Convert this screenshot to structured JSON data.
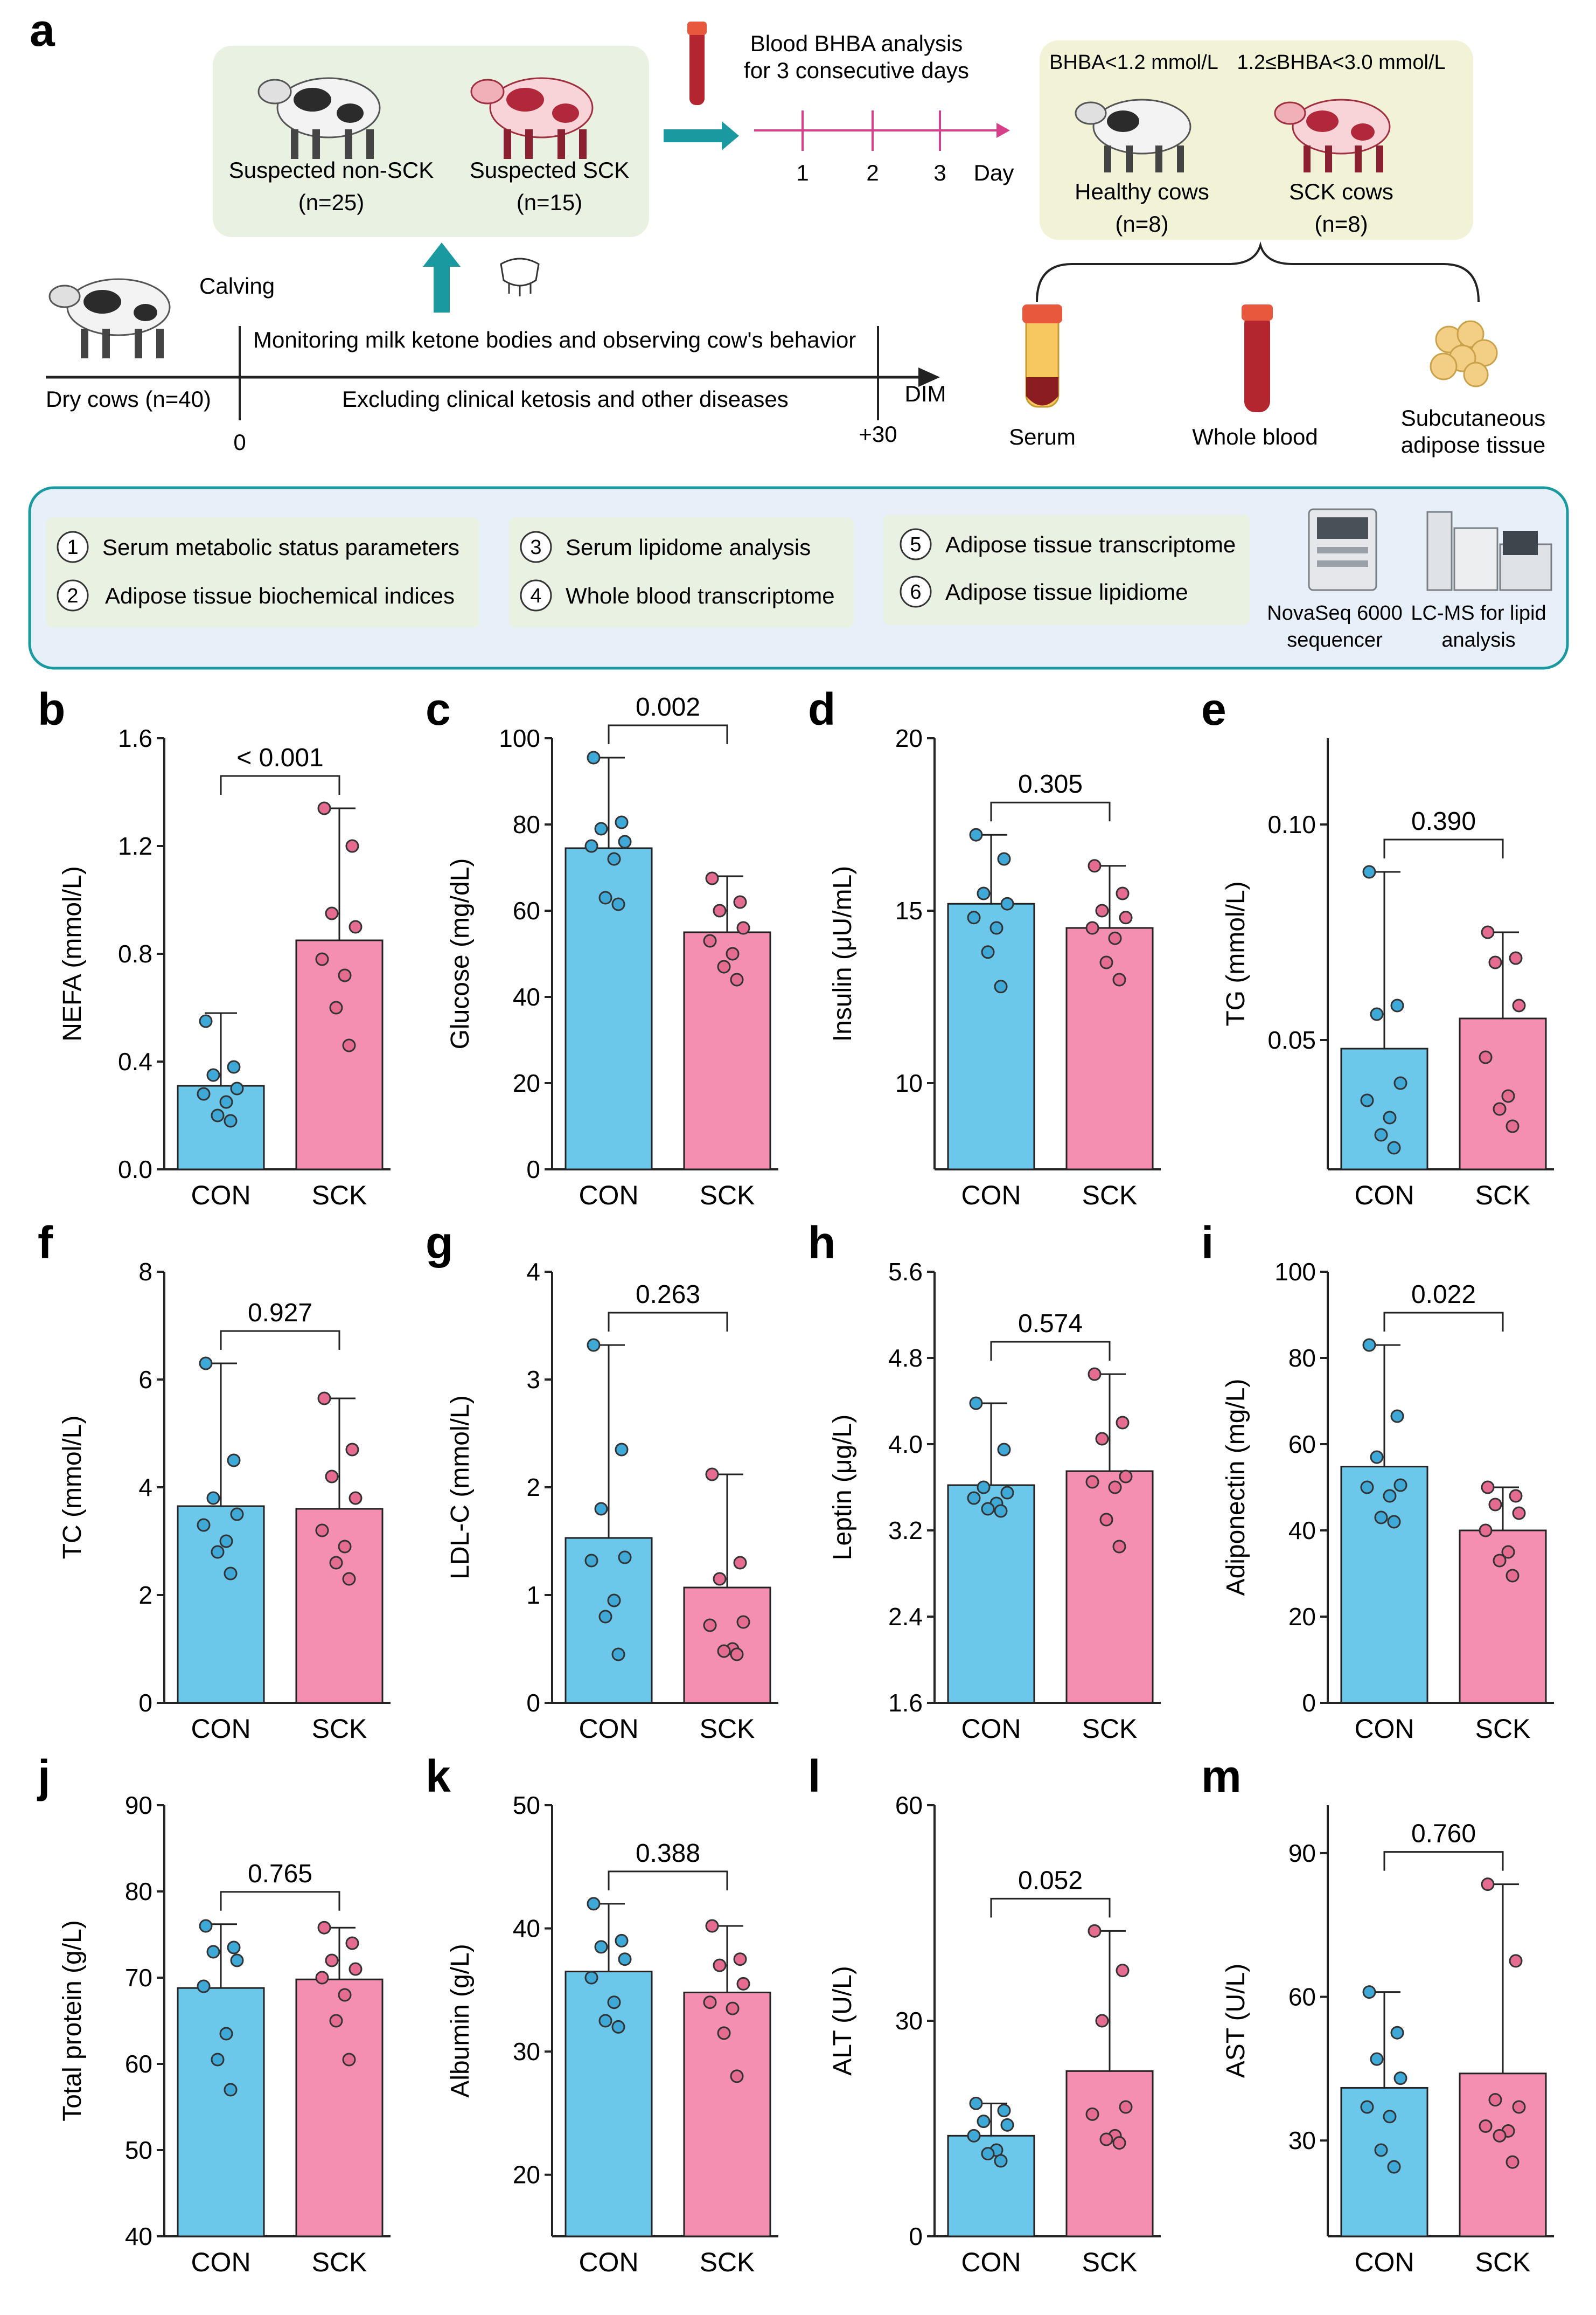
{
  "panel_a": {
    "letter": "a",
    "suspected_non_sck": {
      "label": "Suspected non-SCK",
      "n": "(n=25)"
    },
    "suspected_sck": {
      "label": "Suspected SCK",
      "n": "(n=15)"
    },
    "blood_bhba": {
      "line1": "Blood BHBA analysis",
      "line2": "for 3 consecutive days"
    },
    "days": [
      "1",
      "2",
      "3"
    ],
    "day_label": "Day",
    "healthy": {
      "criterion": "BHBA<1.2 mmol/L",
      "label": "Healthy cows",
      "n": "(n=8)"
    },
    "sck": {
      "criterion": "1.2≤BHBA<3.0 mmol/L",
      "label": "SCK cows",
      "n": "(n=8)"
    },
    "calving": "Calving",
    "monitoring": "Monitoring milk ketone bodies and observing cow's behavior",
    "excluding": "Excluding clinical ketosis and other diseases",
    "dry_cows": "Dry cows (n=40)",
    "timeline_zero": "0",
    "timeline_end": "+30",
    "dim": "DIM",
    "samples": {
      "serum": "Serum",
      "blood": "Whole blood",
      "adipose1": "Subcutaneous",
      "adipose2": "adipose tissue"
    },
    "analyses": [
      {
        "num": "1",
        "text": "Serum metabolic status parameters"
      },
      {
        "num": "2",
        "text": "Adipose tissue biochemical indices"
      },
      {
        "num": "3",
        "text": "Serum lipidome analysis"
      },
      {
        "num": "4",
        "text": "Whole blood transcriptome"
      },
      {
        "num": "5",
        "text": "Adipose tissue transcriptome"
      },
      {
        "num": "6",
        "text": "Adipose tissue lipidiome"
      }
    ],
    "instrument1": {
      "line1": "NovaSeq 6000",
      "line2": "sequencer"
    },
    "instrument2": {
      "line1": "LC-MS for lipid",
      "line2": "analysis"
    }
  },
  "colors": {
    "con": "#6cc8ea",
    "sck": "#f48fb1",
    "con_dot": "#3ea9d6",
    "sck_dot": "#e56b91",
    "panel_green": "#e9f1e2",
    "panel_yellow": "#f1f2d6",
    "panel_blue": "#e7f0f9",
    "teal": "#1a9aa0",
    "magenta": "#d6408a"
  },
  "chart_data": [
    {
      "letter": "b",
      "type": "bar",
      "categories": [
        "CON",
        "SCK"
      ],
      "ylabel": "NEFA (mmol/L)",
      "ylim": [
        0,
        1.6
      ],
      "yticks": [
        "0.0",
        "0.4",
        "0.8",
        "1.2",
        "1.6"
      ],
      "means": [
        0.31,
        0.85
      ],
      "sd_top": [
        0.58,
        1.34
      ],
      "pvalue": "< 0.001",
      "points": [
        [
          0.55,
          0.38,
          0.35,
          0.3,
          0.28,
          0.25,
          0.2,
          0.18
        ],
        [
          1.34,
          1.2,
          0.95,
          0.9,
          0.78,
          0.72,
          0.6,
          0.46
        ]
      ]
    },
    {
      "letter": "c",
      "type": "bar",
      "categories": [
        "CON",
        "SCK"
      ],
      "ylabel": "Glucose (mg/dL)",
      "ylim": [
        0,
        100
      ],
      "yticks": [
        "0",
        "20",
        "40",
        "60",
        "80",
        "100"
      ],
      "means": [
        74.5,
        55
      ],
      "sd_top": [
        95.5,
        68
      ],
      "pvalue": "0.002",
      "points": [
        [
          95.5,
          80.5,
          79,
          76,
          75,
          72,
          63,
          61.5
        ],
        [
          67.5,
          62,
          60,
          56,
          53,
          50,
          47,
          44
        ]
      ]
    },
    {
      "letter": "d",
      "type": "bar",
      "categories": [
        "CON",
        "SCK"
      ],
      "ylabel": "Insulin (μU/mL)",
      "ylim": [
        7.5,
        20
      ],
      "yticks": [
        "10",
        "15",
        "20"
      ],
      "means": [
        15.2,
        14.5
      ],
      "sd_top": [
        17.2,
        16.3
      ],
      "pvalue": "0.305",
      "points": [
        [
          17.2,
          16.5,
          15.5,
          15.2,
          14.8,
          14.5,
          13.8,
          12.8
        ],
        [
          16.3,
          15.5,
          15.0,
          14.8,
          14.5,
          14.2,
          13.5,
          13.0
        ]
      ]
    },
    {
      "letter": "e",
      "type": "bar",
      "categories": [
        "CON",
        "SCK"
      ],
      "ylabel": "TG (mmol/L)",
      "ylim": [
        0.02,
        0.12
      ],
      "yticks": [
        "0.05",
        "0.10"
      ],
      "means": [
        0.048,
        0.055
      ],
      "sd_top": [
        0.089,
        0.075
      ],
      "pvalue": "0.390",
      "points": [
        [
          0.089,
          0.058,
          0.056,
          0.04,
          0.036,
          0.032,
          0.028,
          0.025
        ],
        [
          0.075,
          0.069,
          0.068,
          0.058,
          0.046,
          0.037,
          0.034,
          0.03
        ]
      ]
    },
    {
      "letter": "f",
      "type": "bar",
      "categories": [
        "CON",
        "SCK"
      ],
      "ylabel": "TC (mmol/L)",
      "ylim": [
        0,
        8
      ],
      "yticks": [
        "0",
        "2",
        "4",
        "6",
        "8"
      ],
      "means": [
        3.65,
        3.6
      ],
      "sd_top": [
        6.3,
        5.65
      ],
      "pvalue": "0.927",
      "points": [
        [
          6.3,
          4.5,
          3.8,
          3.5,
          3.3,
          3.0,
          2.8,
          2.4
        ],
        [
          5.65,
          4.7,
          4.2,
          3.8,
          3.2,
          2.9,
          2.6,
          2.3
        ]
      ]
    },
    {
      "letter": "g",
      "type": "bar",
      "categories": [
        "CON",
        "SCK"
      ],
      "ylabel": "LDL-C (mmol/L)",
      "ylim": [
        0,
        4
      ],
      "yticks": [
        "0",
        "1",
        "2",
        "3",
        "4"
      ],
      "means": [
        1.53,
        1.07
      ],
      "sd_top": [
        3.32,
        2.12
      ],
      "pvalue": "0.263",
      "points": [
        [
          3.32,
          2.35,
          1.8,
          1.35,
          1.32,
          0.95,
          0.8,
          0.45
        ],
        [
          2.12,
          1.3,
          1.15,
          0.75,
          0.72,
          0.5,
          0.48,
          0.45
        ]
      ]
    },
    {
      "letter": "h",
      "type": "bar",
      "categories": [
        "CON",
        "SCK"
      ],
      "ylabel": "Leptin (μg/L)",
      "ylim": [
        1.6,
        5.6
      ],
      "yticks": [
        "1.6",
        "2.4",
        "3.2",
        "4.0",
        "4.8",
        "5.6"
      ],
      "means": [
        3.62,
        3.75
      ],
      "sd_top": [
        4.38,
        4.65
      ],
      "pvalue": "0.574",
      "points": [
        [
          4.38,
          3.95,
          3.6,
          3.55,
          3.5,
          3.45,
          3.4,
          3.38
        ],
        [
          4.65,
          4.2,
          4.05,
          3.7,
          3.65,
          3.6,
          3.3,
          3.05
        ]
      ]
    },
    {
      "letter": "i",
      "type": "bar",
      "categories": [
        "CON",
        "SCK"
      ],
      "ylabel": "Adiponectin (mg/L)",
      "ylim": [
        0,
        100
      ],
      "yticks": [
        "0",
        "20",
        "40",
        "60",
        "80",
        "100"
      ],
      "means": [
        54.8,
        40
      ],
      "sd_top": [
        83,
        50
      ],
      "pvalue": "0.022",
      "points": [
        [
          83,
          66.5,
          57,
          50.5,
          50,
          48,
          43,
          42
        ],
        [
          50,
          48,
          46,
          44,
          40,
          35,
          33,
          29.5
        ]
      ]
    },
    {
      "letter": "j",
      "type": "bar",
      "categories": [
        "CON",
        "SCK"
      ],
      "ylabel": "Total protein (g/L)",
      "ylim": [
        40,
        90
      ],
      "yticks": [
        "40",
        "50",
        "60",
        "70",
        "80",
        "90"
      ],
      "means": [
        68.8,
        69.8
      ],
      "sd_top": [
        76.2,
        75.8
      ],
      "pvalue": "0.765",
      "points": [
        [
          76,
          73.5,
          73,
          72,
          69,
          63.5,
          60.5,
          57
        ],
        [
          75.8,
          74,
          72,
          71,
          70,
          68,
          65,
          60.5
        ]
      ]
    },
    {
      "letter": "k",
      "type": "bar",
      "categories": [
        "CON",
        "SCK"
      ],
      "ylabel": "Albumin (g/L)",
      "ylim": [
        15,
        50
      ],
      "yticks": [
        "20",
        "30",
        "40",
        "50"
      ],
      "means": [
        36.5,
        34.8
      ],
      "sd_top": [
        42,
        40.2
      ],
      "pvalue": "0.388",
      "points": [
        [
          42,
          39,
          38.5,
          37.5,
          36,
          34,
          32.5,
          32
        ],
        [
          40.2,
          37.5,
          37,
          35.5,
          34,
          33.5,
          31.5,
          28
        ]
      ]
    },
    {
      "letter": "l",
      "type": "bar",
      "categories": [
        "CON",
        "SCK"
      ],
      "ylabel": "ALT (U/L)",
      "ylim": [
        0,
        60
      ],
      "yticks": [
        "0",
        "30",
        "60"
      ],
      "means": [
        14,
        23
      ],
      "sd_top": [
        18.5,
        42.5
      ],
      "pvalue": "0.052",
      "points": [
        [
          18.5,
          17.5,
          16,
          15.5,
          14,
          12,
          11.5,
          10.5
        ],
        [
          42.5,
          37,
          30,
          18,
          17,
          14,
          13.5,
          13
        ]
      ]
    },
    {
      "letter": "m",
      "type": "bar",
      "categories": [
        "CON",
        "SCK"
      ],
      "ylabel": "AST (U/L)",
      "ylim": [
        10,
        100
      ],
      "yticks": [
        "30",
        "60",
        "90"
      ],
      "means": [
        41,
        44
      ],
      "sd_top": [
        61,
        83.5
      ],
      "pvalue": "0.760",
      "points": [
        [
          61,
          52.5,
          47,
          43,
          37,
          35,
          28,
          24.5
        ],
        [
          83.5,
          67.5,
          38.5,
          37,
          33,
          32,
          31,
          25.5
        ]
      ]
    }
  ]
}
